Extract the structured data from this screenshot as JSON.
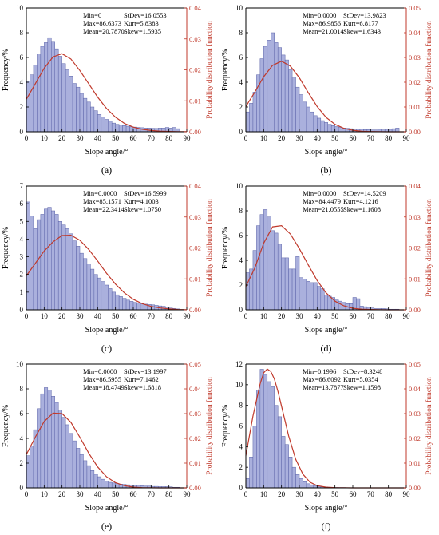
{
  "figure": {
    "panel_count": 6
  },
  "chart_data": [
    {
      "panel_label": "(a)",
      "type": "bar",
      "overlay": "line",
      "xlabel": "Slope angle/°",
      "ylabel": "Frequency/%",
      "y2label": "Probability distribution function",
      "xlim": [
        0,
        90
      ],
      "ylim": [
        0,
        10
      ],
      "y2lim": [
        0,
        0.04
      ],
      "xticks": [
        "0",
        "10",
        "20",
        "30",
        "40",
        "50",
        "60",
        "70",
        "80",
        "90"
      ],
      "yticks": [
        "0",
        "2",
        "4",
        "6",
        "8",
        "10"
      ],
      "y2ticks": [
        "0.00",
        "0.01",
        "0.02",
        "0.03",
        "0.04"
      ],
      "stats": [
        [
          "Min=0",
          "StDev=16.0553"
        ],
        [
          "Max=86.6373",
          "Kurt=5.8383"
        ],
        [
          "Mean=20.7870",
          "Skew=1.5935"
        ]
      ],
      "bar_width": 2,
      "bar_x": [
        1,
        3,
        5,
        7,
        9,
        11,
        13,
        15,
        17,
        19,
        21,
        23,
        25,
        27,
        29,
        31,
        33,
        35,
        37,
        39,
        41,
        43,
        45,
        47,
        49,
        51,
        53,
        55,
        57,
        59,
        61,
        63,
        65,
        67,
        69,
        71,
        73,
        75,
        77,
        79,
        81,
        83,
        85
      ],
      "bar_values": [
        4.1,
        4.6,
        5.4,
        6.3,
        6.9,
        7.2,
        7.6,
        7.3,
        6.7,
        6.1,
        5.5,
        5.0,
        4.5,
        3.9,
        3.6,
        3.1,
        2.7,
        2.4,
        2.0,
        1.7,
        1.4,
        1.2,
        1.0,
        0.85,
        0.7,
        0.6,
        0.55,
        0.5,
        0.45,
        0.4,
        0.38,
        0.35,
        0.33,
        0.3,
        0.3,
        0.28,
        0.27,
        0.3,
        0.3,
        0.35,
        0.3,
        0.35,
        0.25
      ],
      "pdf_x": [
        0,
        5,
        10,
        15,
        20,
        25,
        30,
        35,
        40,
        45,
        50,
        55,
        60,
        65,
        70,
        75,
        80,
        85,
        90
      ],
      "pdf_y": [
        0.0105,
        0.0155,
        0.0205,
        0.0242,
        0.0252,
        0.0235,
        0.0198,
        0.0155,
        0.0112,
        0.0075,
        0.0047,
        0.0027,
        0.0015,
        0.0008,
        0.0004,
        0.0002,
        0.0001,
        5e-05,
        2e-05
      ]
    },
    {
      "panel_label": "(b)",
      "type": "bar",
      "overlay": "line",
      "xlabel": "Slope angle/°",
      "ylabel": "Frequency/%",
      "y2label": "Probability distribution function",
      "xlim": [
        0,
        90
      ],
      "ylim": [
        0,
        10
      ],
      "y2lim": [
        0,
        0.05
      ],
      "xticks": [
        "0",
        "10",
        "20",
        "30",
        "40",
        "50",
        "60",
        "70",
        "80",
        "90"
      ],
      "yticks": [
        "0",
        "2",
        "4",
        "6",
        "8",
        "10"
      ],
      "y2ticks": [
        "0.00",
        "0.01",
        "0.02",
        "0.03",
        "0.04",
        "0.05"
      ],
      "stats": [
        [
          "Min=0.0000",
          "StDev=13.9823"
        ],
        [
          "Max=86.9856",
          "Kurt=6.8177"
        ],
        [
          "Mean=21.0014",
          "Skew=1.6343"
        ]
      ],
      "bar_width": 2,
      "bar_x": [
        1,
        3,
        5,
        7,
        9,
        11,
        13,
        15,
        17,
        19,
        21,
        23,
        25,
        27,
        29,
        31,
        33,
        35,
        37,
        39,
        41,
        43,
        45,
        47,
        49,
        51,
        53,
        55,
        57,
        59,
        61,
        63,
        65,
        67,
        69,
        71,
        73,
        75,
        77,
        79,
        81,
        83,
        85
      ],
      "bar_values": [
        1.6,
        2.3,
        3.2,
        4.6,
        5.9,
        6.9,
        7.4,
        8.0,
        7.2,
        6.8,
        6.2,
        5.8,
        5.0,
        4.4,
        3.6,
        3.0,
        2.4,
        2.0,
        1.6,
        1.3,
        1.1,
        0.9,
        0.75,
        0.6,
        0.5,
        0.42,
        0.36,
        0.3,
        0.28,
        0.25,
        0.22,
        0.2,
        0.2,
        0.18,
        0.18,
        0.15,
        0.15,
        0.2,
        0.15,
        0.2,
        0.2,
        0.25,
        0.3
      ],
      "pdf_x": [
        0,
        5,
        10,
        15,
        20,
        25,
        30,
        35,
        40,
        45,
        50,
        55,
        60,
        65,
        70,
        75,
        80,
        85,
        90
      ],
      "pdf_y": [
        0.0102,
        0.016,
        0.0222,
        0.0268,
        0.0285,
        0.0265,
        0.0218,
        0.0158,
        0.0102,
        0.0058,
        0.003,
        0.0014,
        0.0006,
        0.0002,
        0.0001,
        4e-05,
        1e-05,
        0.0,
        0.0
      ]
    },
    {
      "panel_label": "(c)",
      "type": "bar",
      "overlay": "line",
      "xlabel": "Slope angle/°",
      "ylabel": "Frequency/%",
      "y2label": "Probability distribution function",
      "xlim": [
        0,
        90
      ],
      "ylim": [
        0,
        7
      ],
      "y2lim": [
        0,
        0.04
      ],
      "xticks": [
        "0",
        "10",
        "20",
        "30",
        "40",
        "50",
        "60",
        "70",
        "80",
        "90"
      ],
      "yticks": [
        "0",
        "1",
        "2",
        "3",
        "4",
        "5",
        "6",
        "7"
      ],
      "y2ticks": [
        "0.00",
        "0.01",
        "0.02",
        "0.03",
        "0.04"
      ],
      "stats": [
        [
          "Min=0.0000",
          "StDev=16.5999"
        ],
        [
          "Max=85.1571",
          "Kurt=4.1003"
        ],
        [
          "Mean=22.3414",
          "Skew=1.0750"
        ]
      ],
      "bar_width": 2,
      "bar_x": [
        1,
        3,
        5,
        7,
        9,
        11,
        13,
        15,
        17,
        19,
        21,
        23,
        25,
        27,
        29,
        31,
        33,
        35,
        37,
        39,
        41,
        43,
        45,
        47,
        49,
        51,
        53,
        55,
        57,
        59,
        61,
        63,
        65,
        67,
        69,
        71,
        73,
        75,
        77,
        79,
        81,
        83,
        85
      ],
      "bar_values": [
        6.1,
        5.3,
        4.6,
        5.1,
        5.4,
        5.7,
        5.8,
        5.6,
        5.4,
        5.0,
        4.8,
        4.6,
        4.3,
        3.9,
        3.6,
        3.2,
        2.9,
        2.6,
        2.3,
        2.0,
        1.8,
        1.6,
        1.4,
        1.2,
        1.0,
        0.85,
        0.75,
        0.65,
        0.55,
        0.48,
        0.42,
        0.38,
        0.35,
        0.32,
        0.3,
        0.28,
        0.25,
        0.22,
        0.2,
        0.15,
        0.1,
        0.08,
        0.05
      ],
      "pdf_x": [
        0,
        5,
        10,
        15,
        20,
        25,
        30,
        35,
        40,
        45,
        50,
        55,
        60,
        65,
        70,
        75,
        80,
        85,
        90
      ],
      "pdf_y": [
        0.011,
        0.015,
        0.019,
        0.022,
        0.024,
        0.0241,
        0.0225,
        0.0195,
        0.0158,
        0.0118,
        0.0083,
        0.0055,
        0.0034,
        0.002,
        0.0011,
        0.0006,
        0.0003,
        0.0001,
        5e-05
      ]
    },
    {
      "panel_label": "(d)",
      "type": "bar",
      "overlay": "line",
      "xlabel": "Slope angle/°",
      "ylabel": "Frequency/%",
      "y2label": "Probability distribution function",
      "xlim": [
        0,
        90
      ],
      "ylim": [
        0,
        10
      ],
      "y2lim": [
        0,
        0.04
      ],
      "xticks": [
        "0",
        "10",
        "20",
        "30",
        "40",
        "50",
        "60",
        "70",
        "80",
        "90"
      ],
      "yticks": [
        "0",
        "2",
        "4",
        "6",
        "8",
        "10"
      ],
      "y2ticks": [
        "0.00",
        "0.01",
        "0.02",
        "0.03",
        "0.04"
      ],
      "stats": [
        [
          "Min=0.0000",
          "StDev=14.5209"
        ],
        [
          "Max=84.4479",
          "Kurt=4.1216"
        ],
        [
          "Mean=21.0555",
          "Skew=1.1608"
        ]
      ],
      "bar_width": 2,
      "bar_x": [
        1,
        3,
        5,
        7,
        9,
        11,
        13,
        15,
        17,
        19,
        21,
        23,
        25,
        27,
        29,
        31,
        33,
        35,
        37,
        39,
        41,
        43,
        45,
        47,
        49,
        51,
        53,
        55,
        57,
        59,
        61,
        63,
        65,
        67,
        69,
        71,
        73,
        75,
        77,
        79,
        81,
        83,
        85
      ],
      "bar_values": [
        3.0,
        3.3,
        4.8,
        6.8,
        7.7,
        8.1,
        7.5,
        6.4,
        6.2,
        5.3,
        4.2,
        4.2,
        3.3,
        3.3,
        4.3,
        2.6,
        2.5,
        2.3,
        2.2,
        2.2,
        1.9,
        1.7,
        1.2,
        1.1,
        1.0,
        0.8,
        0.7,
        0.6,
        0.5,
        0.5,
        1.0,
        0.9,
        0.3,
        0.25,
        0.2,
        0.15,
        0.1,
        0.1,
        0.1,
        0.08,
        0.05,
        0.05,
        0.05
      ],
      "pdf_x": [
        0,
        5,
        10,
        15,
        20,
        25,
        30,
        35,
        40,
        45,
        50,
        55,
        60,
        65,
        70,
        75,
        80,
        85,
        90
      ],
      "pdf_y": [
        0.0075,
        0.0135,
        0.0215,
        0.0268,
        0.0272,
        0.0245,
        0.0198,
        0.0145,
        0.0095,
        0.0055,
        0.0028,
        0.0013,
        0.0005,
        0.0002,
        0.0001,
        3e-05,
        1e-05,
        0.0,
        0.0
      ]
    },
    {
      "panel_label": "(e)",
      "type": "bar",
      "overlay": "line",
      "xlabel": "Slope angle/°",
      "ylabel": "Frequency/%",
      "y2label": "Probability distribution function",
      "xlim": [
        0,
        90
      ],
      "ylim": [
        0,
        10
      ],
      "y2lim": [
        0,
        0.05
      ],
      "xticks": [
        "0",
        "10",
        "20",
        "30",
        "40",
        "50",
        "60",
        "70",
        "80",
        "90"
      ],
      "yticks": [
        "0",
        "2",
        "4",
        "6",
        "8",
        "10"
      ],
      "y2ticks": [
        "0.00",
        "0.01",
        "0.02",
        "0.03",
        "0.04",
        "0.05"
      ],
      "stats": [
        [
          "Min=0.0000",
          "StDev=13.1997"
        ],
        [
          "Max=86.5955",
          "Kurt=7.1462"
        ],
        [
          "Mean=18.4749",
          "Skew=1.6818"
        ]
      ],
      "bar_width": 2,
      "bar_x": [
        1,
        3,
        5,
        7,
        9,
        11,
        13,
        15,
        17,
        19,
        21,
        23,
        25,
        27,
        29,
        31,
        33,
        35,
        37,
        39,
        41,
        43,
        45,
        47,
        49,
        51,
        53,
        55,
        57,
        59,
        61,
        63,
        65,
        67,
        69,
        71,
        73,
        75,
        77,
        79,
        81,
        83,
        85
      ],
      "bar_values": [
        2.6,
        3.4,
        4.7,
        6.4,
        7.6,
        8.1,
        7.9,
        7.4,
        6.9,
        6.3,
        5.7,
        5.1,
        4.4,
        3.8,
        3.2,
        2.7,
        2.2,
        1.8,
        1.4,
        1.1,
        0.9,
        0.7,
        0.55,
        0.45,
        0.4,
        0.35,
        0.3,
        0.28,
        0.25,
        0.22,
        0.2,
        0.2,
        0.18,
        0.15,
        0.15,
        0.12,
        0.12,
        0.1,
        0.1,
        0.1,
        0.08,
        0.05,
        0.05
      ],
      "pdf_x": [
        0,
        5,
        10,
        15,
        20,
        25,
        30,
        35,
        40,
        45,
        50,
        55,
        60,
        65,
        70,
        75,
        80,
        85,
        90
      ],
      "pdf_y": [
        0.0135,
        0.0205,
        0.0268,
        0.0302,
        0.03,
        0.0265,
        0.0205,
        0.014,
        0.0085,
        0.0045,
        0.0021,
        0.0009,
        0.0003,
        0.0001,
        4e-05,
        1e-05,
        0.0,
        0.0,
        0.0
      ]
    },
    {
      "panel_label": "(f)",
      "type": "bar",
      "overlay": "line",
      "xlabel": "Slope angle/°",
      "ylabel": "Frequency/%",
      "y2label": "Probability distribution function",
      "xlim": [
        0,
        90
      ],
      "ylim": [
        0,
        12
      ],
      "y2lim": [
        0,
        0.05
      ],
      "xticks": [
        "0",
        "10",
        "20",
        "30",
        "40",
        "50",
        "60",
        "70",
        "80",
        "90"
      ],
      "yticks": [
        "0",
        "2",
        "4",
        "6",
        "8",
        "10",
        "12"
      ],
      "y2ticks": [
        "0.00",
        "0.01",
        "0.02",
        "0.03",
        "0.04",
        "0.05"
      ],
      "stats": [
        [
          "Min=0.1996",
          "StDev=8.3248"
        ],
        [
          "Max=66.6092",
          "Kurt=5.0354"
        ],
        [
          "Mean=13.7877",
          "Skew=1.1598"
        ]
      ],
      "bar_width": 2,
      "bar_x": [
        1,
        3,
        5,
        7,
        9,
        11,
        13,
        15,
        17,
        19,
        21,
        23,
        25,
        27,
        29,
        31,
        33,
        35,
        37,
        39,
        41,
        43,
        45,
        47,
        49,
        51,
        53,
        55,
        57,
        59,
        61,
        63,
        65
      ],
      "bar_values": [
        0.9,
        3.0,
        6.0,
        9.5,
        11.5,
        11.0,
        10.3,
        9.8,
        8.0,
        6.9,
        5.0,
        4.2,
        3.0,
        2.0,
        1.3,
        0.9,
        0.6,
        0.4,
        0.3,
        0.2,
        0.15,
        0.1,
        0.08,
        0.06,
        0.05,
        0.04,
        0.03,
        0.03,
        0.02,
        0.02,
        0.02,
        0.01,
        0.01
      ],
      "pdf_x": [
        0,
        4,
        8,
        10,
        12,
        14,
        16,
        18,
        20,
        24,
        28,
        32,
        36,
        40,
        45,
        50,
        60,
        70,
        90
      ],
      "pdf_y": [
        0.013,
        0.029,
        0.042,
        0.0465,
        0.048,
        0.047,
        0.044,
        0.039,
        0.033,
        0.021,
        0.0115,
        0.0055,
        0.0023,
        0.0009,
        0.0003,
        0.0001,
        0.0,
        0.0,
        0.0
      ]
    }
  ]
}
